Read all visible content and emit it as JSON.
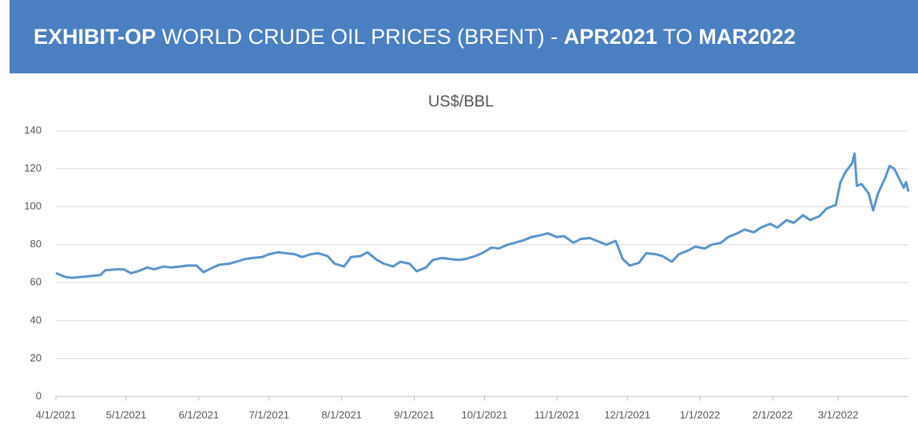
{
  "header": {
    "title_parts": [
      "EXHIBIT-OP",
      "WORLD CRUDE OIL PRICES (BRENT) -",
      "APR2021",
      "TO",
      "MAR2022"
    ]
  },
  "chart_data": {
    "type": "line",
    "title": "US$/BBL",
    "x": [
      "4/1/2021",
      "4/5/2021",
      "4/8/2021",
      "4/12/2021",
      "4/16/2021",
      "4/20/2021",
      "4/22/2021",
      "4/27/2021",
      "4/30/2021",
      "5/3/2021",
      "5/6/2021",
      "5/10/2021",
      "5/13/2021",
      "5/17/2021",
      "5/20/2021",
      "5/24/2021",
      "5/27/2021",
      "5/31/2021",
      "6/3/2021",
      "6/7/2021",
      "6/10/2021",
      "6/14/2021",
      "6/17/2021",
      "6/21/2021",
      "6/24/2021",
      "6/28/2021",
      "7/1/2021",
      "7/5/2021",
      "7/8/2021",
      "7/12/2021",
      "7/15/2021",
      "7/19/2021",
      "7/22/2021",
      "7/26/2021",
      "7/29/2021",
      "8/2/2021",
      "8/5/2021",
      "8/9/2021",
      "8/12/2021",
      "8/16/2021",
      "8/19/2021",
      "8/23/2021",
      "8/26/2021",
      "8/30/2021",
      "9/2/2021",
      "9/6/2021",
      "9/9/2021",
      "9/13/2021",
      "9/16/2021",
      "9/20/2021",
      "9/23/2021",
      "9/27/2021",
      "9/30/2021",
      "10/4/2021",
      "10/7/2021",
      "10/11/2021",
      "10/14/2021",
      "10/18/2021",
      "10/21/2021",
      "10/25/2021",
      "10/28/2021",
      "11/1/2021",
      "11/4/2021",
      "11/8/2021",
      "11/11/2021",
      "11/15/2021",
      "11/18/2021",
      "11/22/2021",
      "11/26/2021",
      "11/29/2021",
      "12/2/2021",
      "12/6/2021",
      "12/9/2021",
      "12/13/2021",
      "12/16/2021",
      "12/20/2021",
      "12/23/2021",
      "12/27/2021",
      "12/30/2021",
      "1/3/2022",
      "1/6/2022",
      "1/10/2022",
      "1/13/2022",
      "1/17/2022",
      "1/20/2022",
      "1/24/2022",
      "1/27/2022",
      "1/31/2022",
      "2/3/2022",
      "2/7/2022",
      "2/10/2022",
      "2/14/2022",
      "2/17/2022",
      "2/21/2022",
      "2/24/2022",
      "2/28/2022",
      "3/2/2022",
      "3/4/2022",
      "3/7/2022",
      "3/8/2022",
      "3/9/2022",
      "3/11/2022",
      "3/14/2022",
      "3/16/2022",
      "3/18/2022",
      "3/21/2022",
      "3/23/2022",
      "3/25/2022",
      "3/29/2022",
      "3/30/2022",
      "3/31/2022"
    ],
    "series": [
      {
        "name": "Brent",
        "color": "#5b95c9",
        "values": [
          65,
          63,
          62.5,
          63,
          63.5,
          64,
          66.5,
          67,
          67,
          65,
          66,
          68,
          67,
          68.5,
          68,
          68.5,
          69,
          69,
          65.5,
          68,
          69.5,
          70,
          71,
          72.5,
          73,
          73.5,
          75,
          76,
          75.5,
          75,
          73.5,
          75,
          75.5,
          74,
          70,
          68.5,
          73.5,
          74,
          76,
          72,
          70,
          68.5,
          71,
          70,
          66,
          68,
          72,
          73,
          72.5,
          72,
          72.5,
          74,
          75.5,
          78.5,
          78,
          80,
          81,
          82.5,
          84,
          85,
          86,
          84,
          84.5,
          81,
          83,
          83.5,
          82,
          80,
          82,
          72.5,
          69,
          70.5,
          75.5,
          75,
          74,
          71,
          75,
          77,
          79,
          78,
          80,
          81,
          84,
          86,
          88,
          86.5,
          89,
          91,
          89,
          93,
          91.5,
          95.5,
          93,
          95,
          99,
          101,
          113,
          118,
          123,
          128,
          111,
          112,
          107,
          98,
          107,
          115,
          121.5,
          120,
          110,
          113,
          108
        ]
      }
    ],
    "xlim": [
      "4/1/2021",
      "3/31/2022"
    ],
    "xticks": [
      "4/1/2021",
      "5/1/2021",
      "6/1/2021",
      "7/1/2021",
      "8/1/2021",
      "9/1/2021",
      "10/1/2021",
      "11/1/2021",
      "12/1/2021",
      "1/1/2022",
      "2/1/2022",
      "3/1/2022"
    ],
    "ylim": [
      0,
      140
    ],
    "yticks": [
      0,
      20,
      40,
      60,
      80,
      100,
      120,
      140
    ],
    "grid": true
  }
}
